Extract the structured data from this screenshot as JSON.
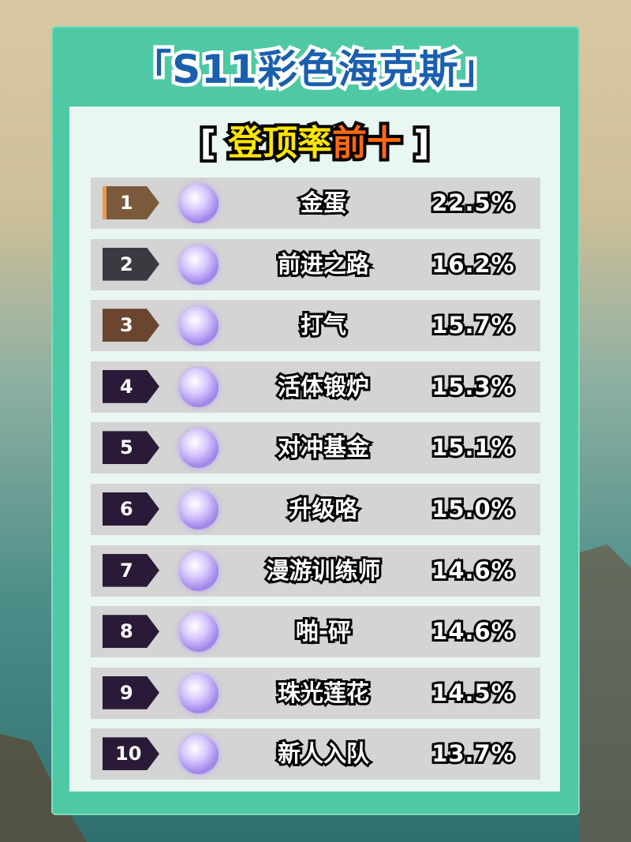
{
  "header": {
    "title": "「S11彩色海克斯」"
  },
  "subtitle": {
    "open": "[",
    "part1": "登顶率",
    "part2": "前十",
    "close": "]"
  },
  "colors": {
    "title": "#1a5fae",
    "header_bg": "#4fc9a5",
    "card_bg": "#e9f7f2",
    "highlight_yellow": "#ffe600",
    "highlight_orange": "#ff6a10"
  },
  "rows": [
    {
      "rank": "1",
      "name": "金蛋",
      "rate": "22.5%",
      "badge_color": "#7a5a3a",
      "icon": "golden-egg-icon"
    },
    {
      "rank": "2",
      "name": "前进之路",
      "rate": "16.2%",
      "badge_color": "#3a3a42",
      "icon": "path-forward-icon"
    },
    {
      "rank": "3",
      "name": "打气",
      "rate": "15.7%",
      "badge_color": "#6a4530",
      "icon": "pump-up-icon"
    },
    {
      "rank": "4",
      "name": "活体锻炉",
      "rate": "15.3%",
      "badge_color": "#2a1a38",
      "icon": "living-forge-icon"
    },
    {
      "rank": "5",
      "name": "对冲基金",
      "rate": "15.1%",
      "badge_color": "#2a1a38",
      "icon": "hedge-fund-icon"
    },
    {
      "rank": "6",
      "name": "升级咯",
      "rate": "15.0%",
      "badge_color": "#2a1a38",
      "icon": "level-up-icon"
    },
    {
      "rank": "7",
      "name": "漫游训练师",
      "rate": "14.6%",
      "badge_color": "#2a1a38",
      "icon": "wandering-trainer-icon"
    },
    {
      "rank": "8",
      "name": "啪-砰",
      "rate": "14.6%",
      "badge_color": "#2a1a38",
      "icon": "pop-bang-icon"
    },
    {
      "rank": "9",
      "name": "珠光莲花",
      "rate": "14.5%",
      "badge_color": "#2a1a38",
      "icon": "pearl-lotus-icon"
    },
    {
      "rank": "10",
      "name": "新人入队",
      "rate": "13.7%",
      "badge_color": "#2a1a38",
      "icon": "new-recruit-icon"
    }
  ]
}
